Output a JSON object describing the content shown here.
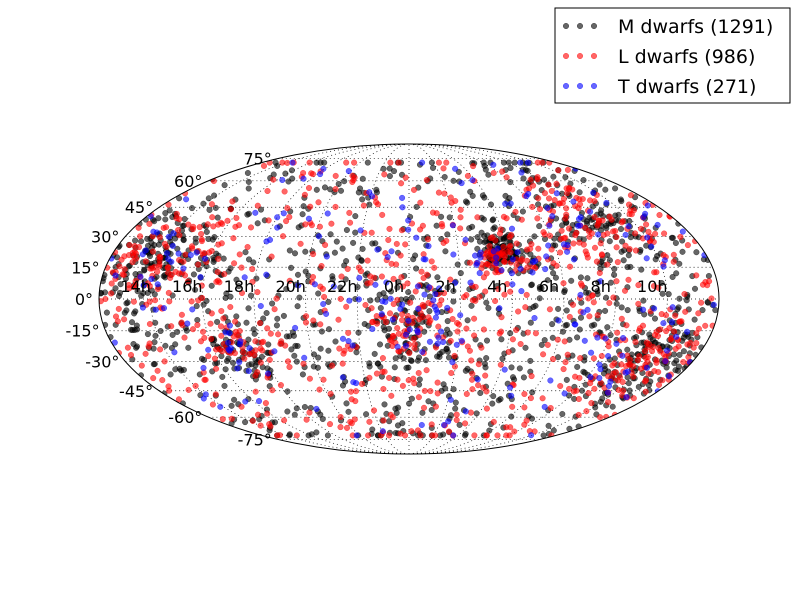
{
  "chart_data": {
    "type": "scatter",
    "projection": "mollweide",
    "grid": true,
    "legend_position": "top-right",
    "x_ticks": [
      "14h",
      "16h",
      "18h",
      "20h",
      "22h",
      "0h",
      "2h",
      "4h",
      "6h",
      "8h",
      "10h"
    ],
    "x_tick_values_deg": [
      150,
      120,
      90,
      60,
      30,
      0,
      -30,
      -60,
      -90,
      -120,
      -150
    ],
    "y_ticks": [
      "75°",
      "60°",
      "45°",
      "30°",
      "15°",
      "0°",
      "-15°",
      "-30°",
      "-45°",
      "-60°",
      "-75°"
    ],
    "y_tick_values_deg": [
      75,
      60,
      45,
      30,
      15,
      0,
      -15,
      -30,
      -45,
      -60,
      -75
    ],
    "series": [
      {
        "name": "M dwarfs (1291)",
        "color": "#000000",
        "alpha": 0.6,
        "count": 1291
      },
      {
        "name": "L dwarfs (986)",
        "color": "#ff0000",
        "alpha": 0.6,
        "count": 986
      },
      {
        "name": "T dwarfs (271)",
        "color": "#0000ff",
        "alpha": 0.6,
        "count": 271
      }
    ]
  }
}
